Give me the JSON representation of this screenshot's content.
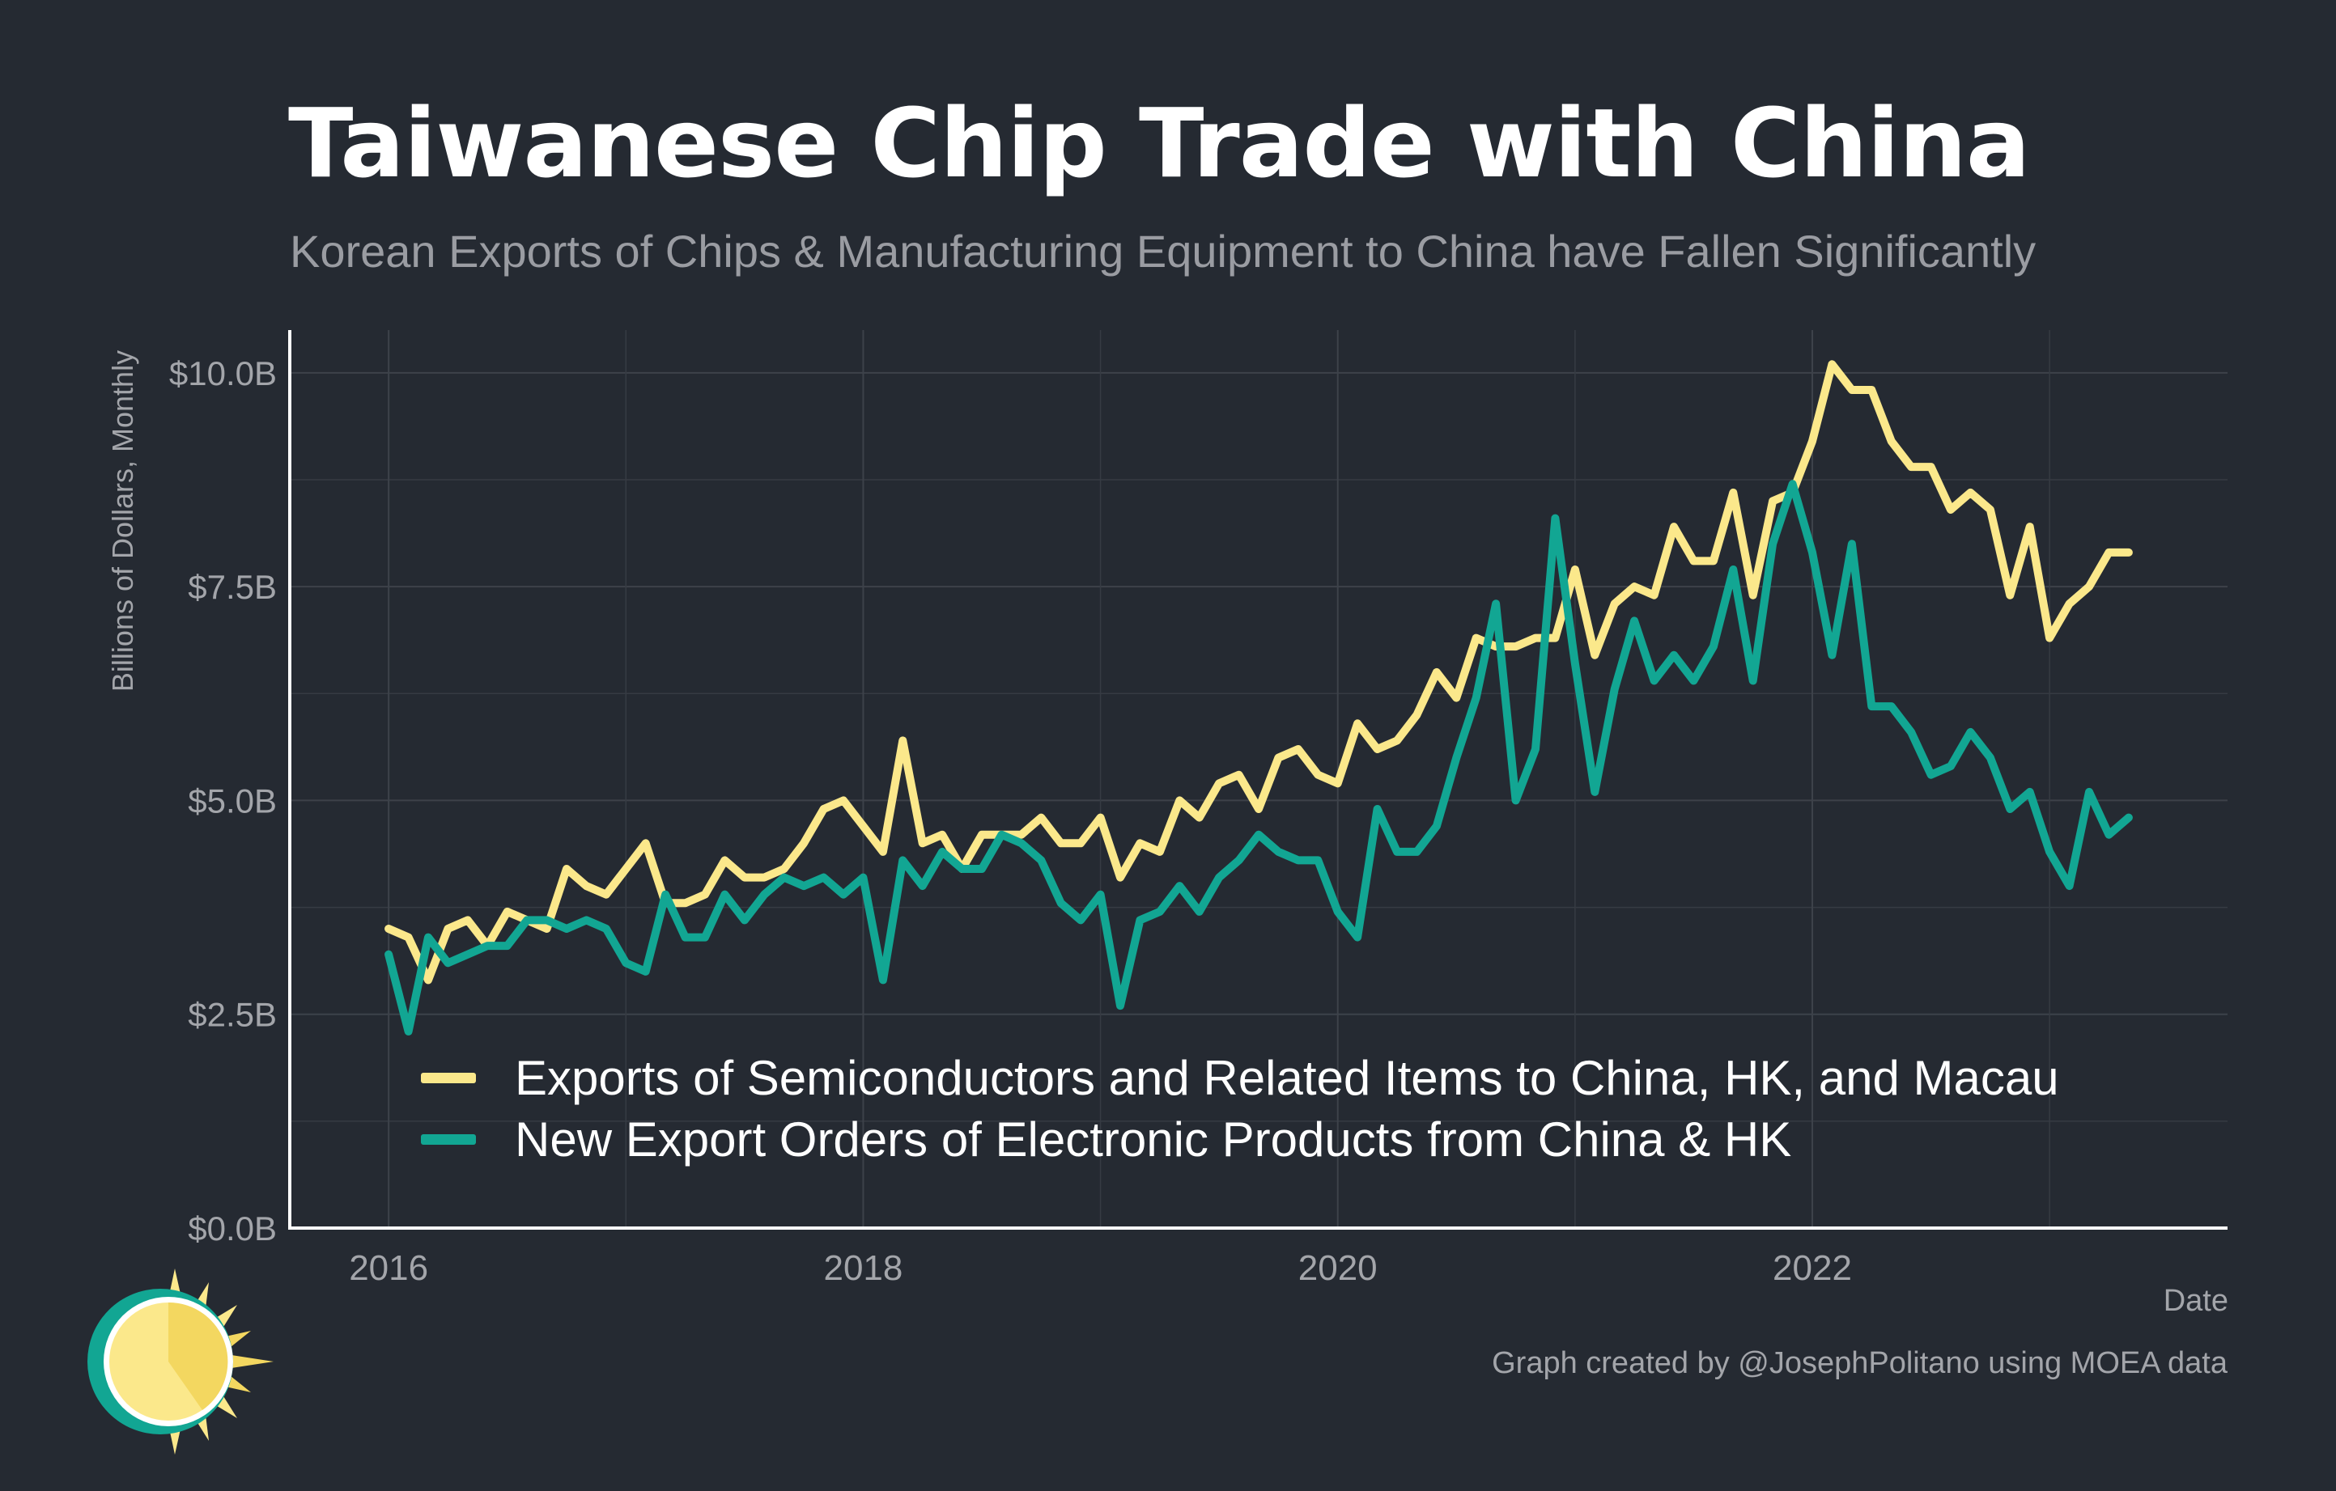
{
  "chart_data": {
    "type": "line",
    "title": "Taiwanese Chip Trade with China",
    "subtitle": "Korean Exports of Chips & Manufacturing Equipment to China have Fallen Significantly",
    "xlabel": "Date",
    "ylabel": "Billions of Dollars, Monthly",
    "caption": "Graph created by @JosephPolitano using MOEA data",
    "xlim": [
      "2015-08",
      "2023-10"
    ],
    "ylim": [
      0,
      10.5
    ],
    "x_ticks": [
      {
        "label": "2016",
        "value": "2016-01"
      },
      {
        "label": "2018",
        "value": "2018-01"
      },
      {
        "label": "2020",
        "value": "2020-01"
      },
      {
        "label": "2022",
        "value": "2022-01"
      }
    ],
    "y_ticks": [
      {
        "label": "$0.0B",
        "value": 0
      },
      {
        "label": "$2.5B",
        "value": 2.5
      },
      {
        "label": "$5.0B",
        "value": 5.0
      },
      {
        "label": "$7.5B",
        "value": 7.5
      },
      {
        "label": "$10.0B",
        "value": 10.0
      }
    ],
    "grid": true,
    "legend_position": "bottom-left inside plot",
    "x": [
      "2016-01",
      "2016-02",
      "2016-03",
      "2016-04",
      "2016-05",
      "2016-06",
      "2016-07",
      "2016-08",
      "2016-09",
      "2016-10",
      "2016-11",
      "2016-12",
      "2017-01",
      "2017-02",
      "2017-03",
      "2017-04",
      "2017-05",
      "2017-06",
      "2017-07",
      "2017-08",
      "2017-09",
      "2017-10",
      "2017-11",
      "2017-12",
      "2018-01",
      "2018-02",
      "2018-03",
      "2018-04",
      "2018-05",
      "2018-06",
      "2018-07",
      "2018-08",
      "2018-09",
      "2018-10",
      "2018-11",
      "2018-12",
      "2019-01",
      "2019-02",
      "2019-03",
      "2019-04",
      "2019-05",
      "2019-06",
      "2019-07",
      "2019-08",
      "2019-09",
      "2019-10",
      "2019-11",
      "2019-12",
      "2020-01",
      "2020-02",
      "2020-03",
      "2020-04",
      "2020-05",
      "2020-06",
      "2020-07",
      "2020-08",
      "2020-09",
      "2020-10",
      "2020-11",
      "2020-12",
      "2021-01",
      "2021-02",
      "2021-03",
      "2021-04",
      "2021-05",
      "2021-06",
      "2021-07",
      "2021-08",
      "2021-09",
      "2021-10",
      "2021-11",
      "2021-12",
      "2022-01",
      "2022-02",
      "2022-03",
      "2022-04",
      "2022-05",
      "2022-06",
      "2022-07",
      "2022-08",
      "2022-09",
      "2022-10",
      "2022-11",
      "2022-12",
      "2023-01",
      "2023-02",
      "2023-03",
      "2023-04",
      "2023-05"
    ],
    "series": [
      {
        "name": "Exports of Semiconductors and Related Items to China, HK, and Macau",
        "color": "#fbe88b",
        "values": [
          3.5,
          3.4,
          2.9,
          3.5,
          3.6,
          3.3,
          3.7,
          3.6,
          3.5,
          4.2,
          4.0,
          3.9,
          4.2,
          4.5,
          3.8,
          3.8,
          3.9,
          4.3,
          4.1,
          4.1,
          4.2,
          4.5,
          4.9,
          5.0,
          4.7,
          4.4,
          5.7,
          4.5,
          4.6,
          4.2,
          4.6,
          4.6,
          4.6,
          4.8,
          4.5,
          4.5,
          4.8,
          4.1,
          4.5,
          4.4,
          5.0,
          4.8,
          5.2,
          5.3,
          4.9,
          5.5,
          5.6,
          5.3,
          5.2,
          5.9,
          5.6,
          5.7,
          6.0,
          6.5,
          6.2,
          6.9,
          6.8,
          6.8,
          6.9,
          6.9,
          7.7,
          6.7,
          7.3,
          7.5,
          7.4,
          8.2,
          7.8,
          7.8,
          8.6,
          7.4,
          8.5,
          8.6,
          9.2,
          10.1,
          9.8,
          9.8,
          9.2,
          8.9,
          8.9,
          8.4,
          8.6,
          8.4,
          7.4,
          8.2,
          6.9,
          7.3,
          7.5,
          7.9,
          7.9
        ]
      },
      {
        "name": "New Export Orders of Electronic Products from China & HK",
        "color": "#12a693",
        "values": [
          3.2,
          2.3,
          3.4,
          3.1,
          3.2,
          3.3,
          3.3,
          3.6,
          3.6,
          3.5,
          3.6,
          3.5,
          3.1,
          3.0,
          3.9,
          3.4,
          3.4,
          3.9,
          3.6,
          3.9,
          4.1,
          4.0,
          4.1,
          3.9,
          4.1,
          2.9,
          4.3,
          4.0,
          4.4,
          4.2,
          4.2,
          4.6,
          4.5,
          4.3,
          3.8,
          3.6,
          3.9,
          2.6,
          3.6,
          3.7,
          4.0,
          3.7,
          4.1,
          4.3,
          4.6,
          4.4,
          4.3,
          4.3,
          3.7,
          3.4,
          4.9,
          4.4,
          4.4,
          4.7,
          5.5,
          6.2,
          7.3,
          5.0,
          5.6,
          8.3,
          6.6,
          5.1,
          6.3,
          7.1,
          6.4,
          6.7,
          6.4,
          6.8,
          7.7,
          6.4,
          8.0,
          8.7,
          7.9,
          6.7,
          8.0,
          6.1,
          6.1,
          5.8,
          5.3,
          5.4,
          5.8,
          5.5,
          4.9,
          5.1,
          4.4,
          4.0,
          5.1,
          4.6,
          4.8
        ]
      }
    ]
  },
  "logo": {
    "icon": "sun-icon",
    "colors": [
      "#fbe88b",
      "#f3d760",
      "#12a693"
    ]
  }
}
